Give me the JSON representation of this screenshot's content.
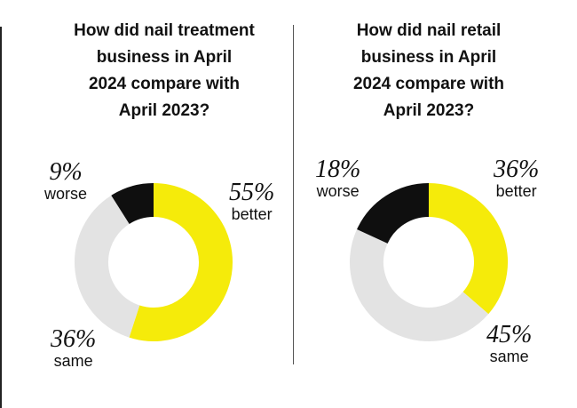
{
  "chart_data": [
    {
      "type": "pie",
      "title_lines": [
        "How did nail treatment",
        "business in April",
        "2024 compare with",
        "April 2023?"
      ],
      "slices": [
        {
          "name": "better",
          "value": 55,
          "pct_label": "55%",
          "color": "#F5EB0A"
        },
        {
          "name": "same",
          "value": 36,
          "pct_label": "36%",
          "color": "#E3E3E3"
        },
        {
          "name": "worse",
          "value": 9,
          "pct_label": "9%",
          "color": "#0F0F0F"
        }
      ]
    },
    {
      "type": "pie",
      "title_lines": [
        "How did nail retail",
        "business in April",
        "2024 compare with",
        "April 2023?"
      ],
      "slices": [
        {
          "name": "better",
          "value": 36,
          "pct_label": "36%",
          "color": "#F5EB0A"
        },
        {
          "name": "same",
          "value": 45,
          "pct_label": "45%",
          "color": "#E3E3E3"
        },
        {
          "name": "worse",
          "value": 18,
          "pct_label": "18%",
          "color": "#0F0F0F"
        }
      ]
    }
  ]
}
